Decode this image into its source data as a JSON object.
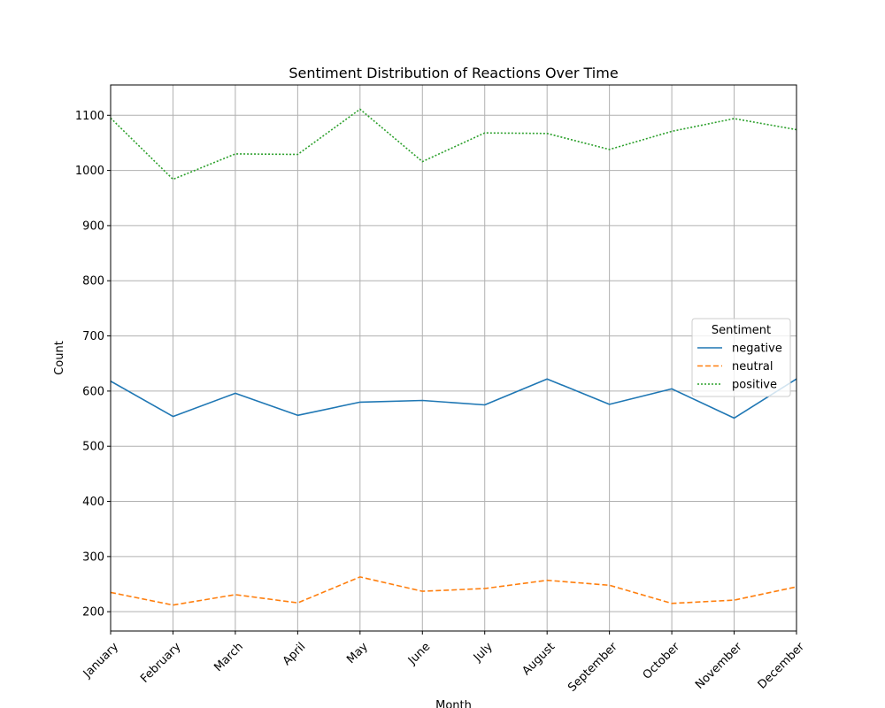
{
  "chart_data": {
    "type": "line",
    "title": "Sentiment Distribution of Reactions Over Time",
    "xlabel": "Month",
    "ylabel": "Count",
    "categories": [
      "January",
      "February",
      "March",
      "April",
      "May",
      "June",
      "July",
      "August",
      "September",
      "October",
      "November",
      "December"
    ],
    "ylim": [
      165,
      1155
    ],
    "yticks": [
      200,
      300,
      400,
      500,
      600,
      700,
      800,
      900,
      1000,
      1100
    ],
    "grid": true,
    "legend": {
      "title": "Sentiment",
      "placement": "center-right"
    },
    "series": [
      {
        "name": "negative",
        "color": "#1f77b4",
        "dash": "solid",
        "values": [
          618,
          554,
          596,
          556,
          580,
          583,
          575,
          622,
          576,
          604,
          551,
          622
        ]
      },
      {
        "name": "neutral",
        "color": "#ff7f0e",
        "dash": "dashed",
        "values": [
          235,
          212,
          231,
          216,
          263,
          237,
          242,
          257,
          248,
          215,
          221,
          245
        ]
      },
      {
        "name": "positive",
        "color": "#2ca02c",
        "dash": "dotted",
        "values": [
          1095,
          984,
          1030,
          1029,
          1111,
          1016,
          1068,
          1067,
          1038,
          1071,
          1094,
          1074
        ]
      }
    ]
  }
}
